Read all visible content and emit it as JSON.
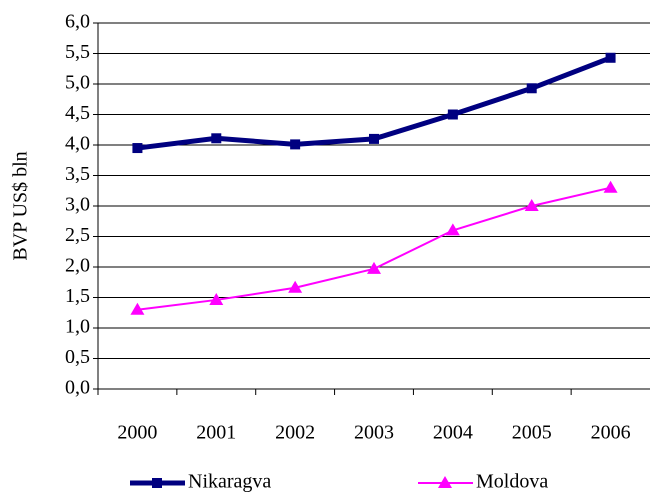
{
  "chart_data": {
    "type": "line",
    "ylabel": "BVP US$ bln",
    "categories": [
      "2000",
      "2001",
      "2002",
      "2003",
      "2004",
      "2005",
      "2006"
    ],
    "series": [
      {
        "name": "Nikaragva",
        "color": "#000080",
        "marker": "square",
        "values": [
          3.95,
          4.11,
          4.01,
          4.1,
          4.5,
          4.93,
          5.43
        ]
      },
      {
        "name": "Moldova",
        "color": "#ff00ff",
        "marker": "triangle",
        "values": [
          1.3,
          1.46,
          1.66,
          1.97,
          2.6,
          3.0,
          3.3
        ]
      }
    ],
    "ylim": [
      0,
      6
    ],
    "yticks": [
      {
        "value": 0,
        "label": "0,0"
      },
      {
        "value": 0.5,
        "label": "0,5"
      },
      {
        "value": 1,
        "label": "1,0"
      },
      {
        "value": 1.5,
        "label": "1,5"
      },
      {
        "value": 2,
        "label": "2,0"
      },
      {
        "value": 2.5,
        "label": "2,5"
      },
      {
        "value": 3,
        "label": "3,0"
      },
      {
        "value": 3.5,
        "label": "3,5"
      },
      {
        "value": 4,
        "label": "4,0"
      },
      {
        "value": 4.5,
        "label": "4,5"
      },
      {
        "value": 5,
        "label": "5,0"
      },
      {
        "value": 5.5,
        "label": "5,5"
      },
      {
        "value": 6,
        "label": "6,0"
      }
    ],
    "grid": true,
    "legend": "bottom"
  }
}
